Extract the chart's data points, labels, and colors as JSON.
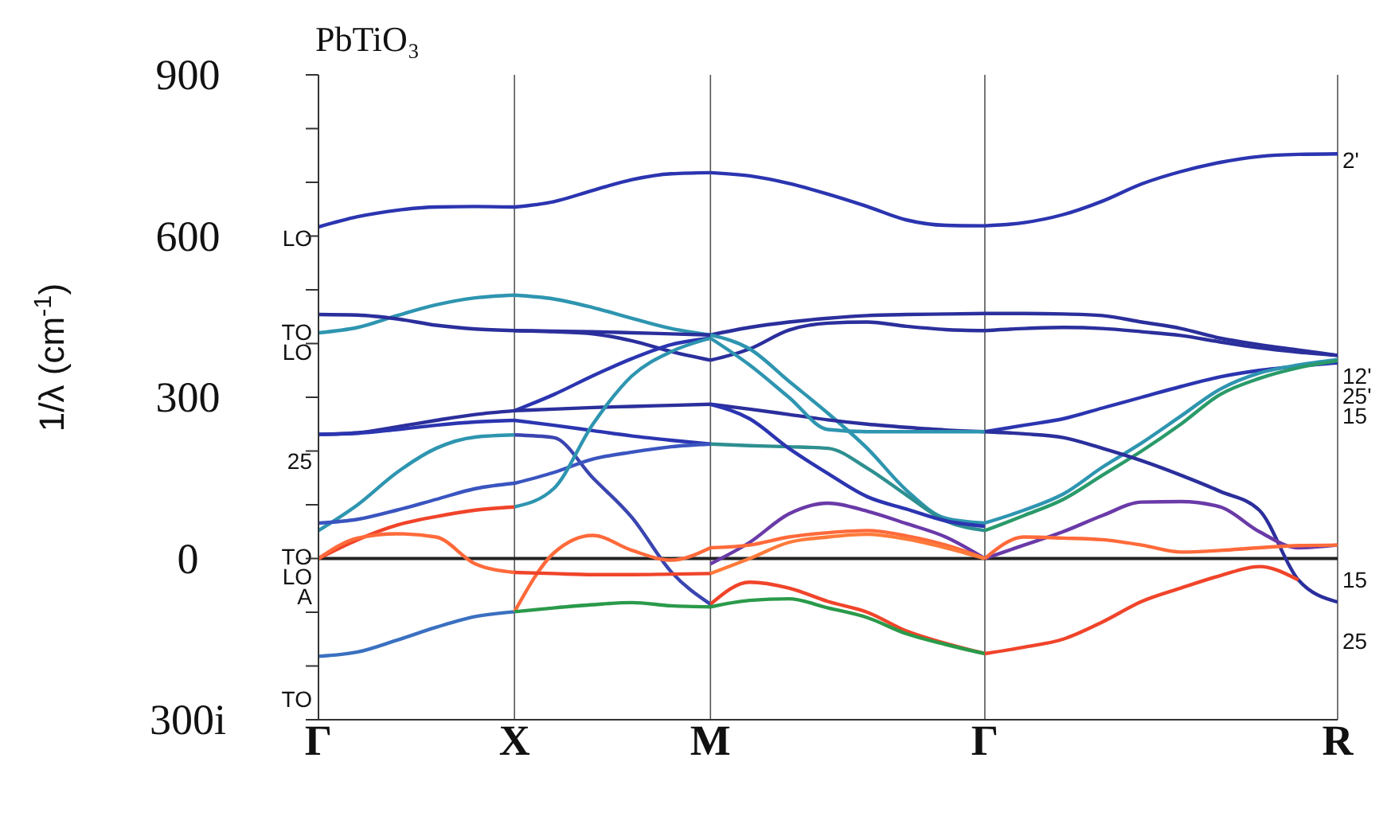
{
  "chart_data": {
    "type": "line",
    "title": "PbTiO₃",
    "ylabel": "1/λ (cm$^{-1}$)",
    "categories": [
      "Γ",
      null,
      null,
      null,
      null,
      "X",
      null,
      null,
      null,
      null,
      "M",
      null,
      null,
      null,
      null,
      null,
      null,
      "Γ",
      null,
      null,
      null,
      null,
      null,
      null,
      null,
      null,
      "R"
    ],
    "ylim": [
      -300,
      900
    ],
    "yticks": [
      900,
      {
        "value": 800,
        "label": null
      },
      {
        "value": 700,
        "label": null
      },
      600,
      {
        "value": 500,
        "label": null
      },
      {
        "value": 400,
        "label": null
      },
      300,
      {
        "value": 200,
        "label": null
      },
      {
        "value": 100,
        "label": null
      },
      0,
      {
        "value": -100,
        "label": null
      },
      {
        "value": -200,
        "label": null
      },
      {
        "value": -300,
        "label": "300i"
      }
    ],
    "grid": "x",
    "line_style": "solid",
    "ref_lines": [
      {
        "axis": "y",
        "value": 0,
        "label": null,
        "color": "#222222"
      }
    ],
    "annotations": [
      {
        "text": "LO",
        "x": "Γ",
        "y": 617
      },
      {
        "text": "TO",
        "x": "Γ",
        "y": 454
      },
      {
        "text": "LO",
        "x": "Γ",
        "y": 420
      },
      {
        "text": "25",
        "x": "Γ",
        "y": 231
      },
      {
        "text": "TO",
        "x": "Γ",
        "y": 66
      },
      {
        "text": "LO",
        "x": "Γ",
        "y": 52
      },
      {
        "text": "A",
        "x": "Γ",
        "y": 0
      },
      {
        "text": "TO",
        "x": "Γ",
        "y": -182
      },
      {
        "text": "2'",
        "x": "R",
        "y": 753
      },
      {
        "text": "12'",
        "x": "R",
        "y": 378
      },
      {
        "text": "25'",
        "x": "R",
        "y": 370
      },
      {
        "text": "15",
        "x": "R",
        "y": 364
      },
      {
        "text": "15",
        "x": "R",
        "y": 25
      },
      {
        "text": "25",
        "x": "R",
        "y": -81
      }
    ],
    "series": [
      {
        "color": "#2b35b0",
        "values": [
          617,
          636,
          648,
          654,
          655,
          654,
          null,
          null,
          null,
          null,
          null,
          null,
          null,
          null,
          null,
          null,
          null,
          null,
          null,
          null,
          null,
          null,
          null,
          null,
          null,
          null,
          null
        ]
      },
      {
        "color": "#2e95b0",
        "values": [
          420,
          430,
          452,
          472,
          485,
          490,
          null,
          null,
          null,
          null,
          null,
          null,
          null,
          null,
          null,
          null,
          null,
          null,
          null,
          null,
          null,
          null,
          null,
          null,
          null,
          null,
          null
        ]
      },
      {
        "color": "#2b2f9c",
        "values": [
          454,
          453,
          446,
          434,
          427,
          424,
          null,
          null,
          null,
          null,
          null,
          null,
          null,
          null,
          null,
          null,
          null,
          null,
          null,
          null,
          null,
          null,
          null,
          null,
          null,
          null,
          null
        ]
      },
      {
        "color": "#2b2f9c",
        "values": [
          231,
          234,
          245,
          257,
          268,
          275,
          null,
          null,
          null,
          null,
          null,
          null,
          null,
          null,
          null,
          null,
          null,
          null,
          null,
          null,
          null,
          null,
          null,
          null,
          null,
          null,
          null
        ]
      },
      {
        "color": "#2b35b0",
        "values": [
          231,
          233,
          240,
          248,
          254,
          257,
          null,
          null,
          null,
          null,
          null,
          null,
          null,
          null,
          null,
          null,
          null,
          null,
          null,
          null,
          null,
          null,
          null,
          null,
          null,
          null,
          null
        ]
      },
      {
        "color": "#2e95b0",
        "values": [
          52,
          100,
          160,
          205,
          226,
          230,
          null,
          null,
          null,
          null,
          null,
          null,
          null,
          null,
          null,
          null,
          null,
          null,
          null,
          null,
          null,
          null,
          null,
          null,
          null,
          null,
          null
        ]
      },
      {
        "color": "#3a55c0",
        "values": [
          66,
          73,
          90,
          110,
          130,
          140,
          null,
          null,
          null,
          null,
          null,
          null,
          null,
          null,
          null,
          null,
          null,
          null,
          null,
          null,
          null,
          null,
          null,
          null,
          null,
          null,
          null
        ]
      },
      {
        "color": "#f0442a",
        "values": [
          0,
          35,
          62,
          78,
          90,
          96,
          null,
          null,
          null,
          null,
          null,
          null,
          null,
          null,
          null,
          null,
          null,
          null,
          null,
          null,
          null,
          null,
          null,
          null,
          null,
          null,
          null
        ]
      },
      {
        "color": "#ff6a3a",
        "values": [
          0,
          38,
          46,
          40,
          -10,
          -26,
          null,
          null,
          null,
          null,
          null,
          null,
          null,
          null,
          null,
          null,
          null,
          null,
          null,
          null,
          null,
          null,
          null,
          null,
          null,
          null,
          null
        ]
      },
      {
        "color": "#3a70c0",
        "values": [
          -182,
          -174,
          -152,
          -128,
          -108,
          -99,
          null,
          null,
          null,
          null,
          null,
          null,
          null,
          null,
          null,
          null,
          null,
          null,
          null,
          null,
          null,
          null,
          null,
          null,
          null,
          null,
          null
        ]
      },
      {
        "color": "#2b35b0",
        "values": [
          null,
          null,
          null,
          null,
          null,
          654,
          664,
          685,
          705,
          716,
          718,
          null,
          null,
          null,
          null,
          null,
          null,
          null,
          null,
          null,
          null,
          null,
          null,
          null,
          null,
          null,
          null
        ]
      },
      {
        "color": "#2e95b0",
        "values": [
          null,
          null,
          null,
          null,
          null,
          490,
          483,
          467,
          447,
          428,
          416,
          null,
          null,
          null,
          null,
          null,
          null,
          null,
          null,
          null,
          null,
          null,
          null,
          null,
          null,
          null,
          null
        ]
      },
      {
        "color": "#2b2f9c",
        "values": [
          null,
          null,
          null,
          null,
          null,
          424,
          423,
          422,
          420,
          418,
          416,
          null,
          null,
          null,
          null,
          null,
          null,
          null,
          null,
          null,
          null,
          null,
          null,
          null,
          null,
          null,
          null
        ]
      },
      {
        "color": "#2b2f9c",
        "values": [
          null,
          null,
          null,
          null,
          null,
          424,
          422,
          418,
          405,
          385,
          369,
          null,
          null,
          null,
          null,
          null,
          null,
          null,
          null,
          null,
          null,
          null,
          null,
          null,
          null,
          null,
          null
        ]
      },
      {
        "color": "#2b35b0",
        "values": [
          null,
          null,
          null,
          null,
          null,
          275,
          305,
          340,
          372,
          398,
          410,
          null,
          null,
          null,
          null,
          null,
          null,
          null,
          null,
          null,
          null,
          null,
          null,
          null,
          null,
          null,
          null
        ]
      },
      {
        "color": "#2b2f9c",
        "values": [
          null,
          null,
          null,
          null,
          null,
          275,
          278,
          281,
          283,
          285,
          287,
          null,
          null,
          null,
          null,
          null,
          null,
          null,
          null,
          null,
          null,
          null,
          null,
          null,
          null,
          null,
          null
        ]
      },
      {
        "color": "#3a45b0",
        "values": [
          null,
          null,
          null,
          null,
          null,
          230,
          225,
          150,
          76,
          -25,
          -85,
          null,
          null,
          null,
          null,
          null,
          null,
          null,
          null,
          null,
          null,
          null,
          null,
          null,
          null,
          null,
          null
        ]
      },
      {
        "color": "#2b35b0",
        "values": [
          null,
          null,
          null,
          null,
          null,
          257,
          248,
          238,
          228,
          220,
          213,
          null,
          null,
          null,
          null,
          null,
          null,
          null,
          null,
          null,
          null,
          null,
          null,
          null,
          null,
          null,
          null
        ]
      },
      {
        "color": "#3a55c0",
        "values": [
          null,
          null,
          null,
          null,
          null,
          140,
          160,
          185,
          198,
          208,
          213,
          null,
          null,
          null,
          null,
          null,
          null,
          null,
          null,
          null,
          null,
          null,
          null,
          null,
          null,
          null,
          null
        ]
      },
      {
        "color": "#2e95b0",
        "values": [
          null,
          null,
          null,
          null,
          null,
          96,
          130,
          250,
          340,
          385,
          410,
          null,
          null,
          null,
          null,
          null,
          null,
          null,
          null,
          null,
          null,
          null,
          null,
          null,
          null,
          null,
          null
        ]
      },
      {
        "color": "#ff6a3a",
        "values": [
          null,
          null,
          null,
          null,
          null,
          -99,
          10,
          43,
          15,
          -3,
          20,
          null,
          null,
          null,
          null,
          null,
          null,
          null,
          null,
          null,
          null,
          null,
          null,
          null,
          null,
          null,
          null
        ]
      },
      {
        "color": "#f0442a",
        "values": [
          null,
          null,
          null,
          null,
          null,
          -26,
          -28,
          -30,
          -30,
          -29,
          -28,
          null,
          null,
          null,
          null,
          null,
          null,
          null,
          null,
          null,
          null,
          null,
          null,
          null,
          null,
          null,
          null
        ]
      },
      {
        "color": "#2a9a4a",
        "values": [
          null,
          null,
          null,
          null,
          null,
          -99,
          -92,
          -86,
          -82,
          -88,
          -90,
          null,
          null,
          null,
          null,
          null,
          null,
          null,
          null,
          null,
          null,
          null,
          null,
          null,
          null,
          null,
          null
        ]
      },
      {
        "color": "#2b35b0",
        "values": [
          null,
          null,
          null,
          null,
          null,
          null,
          null,
          null,
          null,
          null,
          718,
          712,
          698,
          678,
          655,
          630,
          620,
          619,
          null,
          null,
          null,
          null,
          null,
          null,
          null,
          null,
          null
        ]
      },
      {
        "color": "#2b2f9c",
        "values": [
          null,
          null,
          null,
          null,
          null,
          null,
          null,
          null,
          null,
          null,
          416,
          430,
          440,
          447,
          452,
          454,
          455,
          456,
          null,
          null,
          null,
          null,
          null,
          null,
          null,
          null,
          null
        ]
      },
      {
        "color": "#2b2f9c",
        "values": [
          null,
          null,
          null,
          null,
          null,
          null,
          null,
          null,
          null,
          null,
          369,
          390,
          425,
          438,
          440,
          432,
          426,
          424,
          null,
          null,
          null,
          null,
          null,
          null,
          null,
          null,
          null
        ]
      },
      {
        "color": "#2e95b0",
        "values": [
          null,
          null,
          null,
          null,
          null,
          null,
          null,
          null,
          null,
          null,
          416,
          390,
          330,
          270,
          205,
          127,
          75,
          66,
          null,
          null,
          null,
          null,
          null,
          null,
          null,
          null,
          null
        ]
      },
      {
        "color": "#2e8f90",
        "values": [
          null,
          null,
          null,
          null,
          null,
          null,
          null,
          null,
          null,
          null,
          213,
          210,
          208,
          205,
          168,
          118,
          70,
          52,
          null,
          null,
          null,
          null,
          null,
          null,
          null,
          null,
          null
        ]
      },
      {
        "color": "#2b2f9c",
        "values": [
          null,
          null,
          null,
          null,
          null,
          null,
          null,
          null,
          null,
          null,
          287,
          278,
          268,
          258,
          250,
          244,
          239,
          236,
          null,
          null,
          null,
          null,
          null,
          null,
          null,
          null,
          null
        ]
      },
      {
        "color": "#2b35b0",
        "values": [
          null,
          null,
          null,
          null,
          null,
          null,
          null,
          null,
          null,
          null,
          287,
          260,
          205,
          158,
          115,
          92,
          70,
          60,
          null,
          null,
          null,
          null,
          null,
          null,
          null,
          null,
          null
        ]
      },
      {
        "color": "#2e95b0",
        "values": [
          null,
          null,
          null,
          null,
          null,
          null,
          null,
          null,
          null,
          null,
          410,
          360,
          300,
          240,
          236,
          236,
          236,
          236,
          null,
          null,
          null,
          null,
          null,
          null,
          null,
          null,
          null
        ]
      },
      {
        "color": "#6a3aa8",
        "values": [
          null,
          null,
          null,
          null,
          null,
          null,
          null,
          null,
          null,
          null,
          -10,
          30,
          83,
          103,
          88,
          65,
          40,
          0,
          null,
          null,
          null,
          null,
          null,
          null,
          null,
          null,
          null
        ]
      },
      {
        "color": "#ff6a3a",
        "values": [
          null,
          null,
          null,
          null,
          null,
          null,
          null,
          null,
          null,
          null,
          20,
          25,
          40,
          48,
          52,
          42,
          25,
          0,
          null,
          null,
          null,
          null,
          null,
          null,
          null,
          null,
          null
        ]
      },
      {
        "color": "#ff7a3a",
        "values": [
          null,
          null,
          null,
          null,
          null,
          null,
          null,
          null,
          null,
          null,
          -28,
          0,
          30,
          40,
          45,
          36,
          20,
          0,
          null,
          null,
          null,
          null,
          null,
          null,
          null,
          null,
          null
        ]
      },
      {
        "color": "#f0442a",
        "values": [
          null,
          null,
          null,
          null,
          null,
          null,
          null,
          null,
          null,
          null,
          -85,
          -44,
          -55,
          -80,
          -100,
          -135,
          -158,
          -177,
          null,
          null,
          null,
          null,
          null,
          null,
          null,
          null,
          null
        ]
      },
      {
        "color": "#2a9a4a",
        "values": [
          null,
          null,
          null,
          null,
          null,
          null,
          null,
          null,
          null,
          null,
          -90,
          -78,
          -75,
          -92,
          -110,
          -140,
          -160,
          -177,
          null,
          null,
          null,
          null,
          null,
          null,
          null,
          null,
          null
        ]
      },
      {
        "color": "#2b35b0",
        "values": [
          null,
          null,
          null,
          null,
          null,
          null,
          null,
          null,
          null,
          null,
          null,
          null,
          null,
          null,
          null,
          null,
          null,
          619,
          625,
          640,
          665,
          697,
          720,
          737,
          748,
          752,
          753
        ]
      },
      {
        "color": "#2b2f9c",
        "values": [
          null,
          null,
          null,
          null,
          null,
          null,
          null,
          null,
          null,
          null,
          null,
          null,
          null,
          null,
          null,
          null,
          null,
          456,
          456,
          455,
          452,
          440,
          428,
          410,
          398,
          388,
          378
        ]
      },
      {
        "color": "#2b2f9c",
        "values": [
          null,
          null,
          null,
          null,
          null,
          null,
          null,
          null,
          null,
          null,
          null,
          null,
          null,
          null,
          null,
          null,
          null,
          424,
          428,
          430,
          428,
          422,
          415,
          403,
          392,
          384,
          378
        ]
      },
      {
        "color": "#2b35b0",
        "values": [
          null,
          null,
          null,
          null,
          null,
          null,
          null,
          null,
          null,
          null,
          null,
          null,
          null,
          null,
          null,
          null,
          null,
          236,
          248,
          260,
          280,
          300,
          320,
          338,
          350,
          358,
          364
        ]
      },
      {
        "color": "#2e95b0",
        "values": [
          null,
          null,
          null,
          null,
          null,
          null,
          null,
          null,
          null,
          null,
          null,
          null,
          null,
          null,
          null,
          null,
          null,
          66,
          90,
          120,
          170,
          215,
          265,
          315,
          345,
          360,
          370
        ]
      },
      {
        "color": "#2a9a6a",
        "values": [
          null,
          null,
          null,
          null,
          null,
          null,
          null,
          null,
          null,
          null,
          null,
          null,
          null,
          null,
          null,
          null,
          null,
          52,
          80,
          110,
          155,
          200,
          250,
          305,
          335,
          355,
          368
        ]
      },
      {
        "color": "#2b2f9c",
        "values": [
          null,
          null,
          null,
          null,
          null,
          null,
          null,
          null,
          null,
          null,
          null,
          null,
          null,
          null,
          null,
          null,
          null,
          236,
          232,
          225,
          205,
          182,
          155,
          125,
          90,
          -40,
          -81
        ]
      },
      {
        "color": "#6a3aa8",
        "values": [
          null,
          null,
          null,
          null,
          null,
          null,
          null,
          null,
          null,
          null,
          null,
          null,
          null,
          null,
          null,
          null,
          null,
          0,
          25,
          50,
          80,
          105,
          106,
          96,
          50,
          20,
          25
        ]
      },
      {
        "color": "#ff6a3a",
        "values": [
          null,
          null,
          null,
          null,
          null,
          null,
          null,
          null,
          null,
          null,
          null,
          null,
          null,
          null,
          null,
          null,
          null,
          0,
          40,
          38,
          35,
          25,
          12,
          15,
          20,
          24,
          25
        ]
      },
      {
        "color": "#f0442a",
        "values": [
          null,
          null,
          null,
          null,
          null,
          null,
          null,
          null,
          null,
          null,
          null,
          null,
          null,
          null,
          null,
          null,
          null,
          -177,
          -165,
          -150,
          -118,
          -80,
          -55,
          -32,
          -15,
          -40,
          null
        ]
      }
    ]
  }
}
